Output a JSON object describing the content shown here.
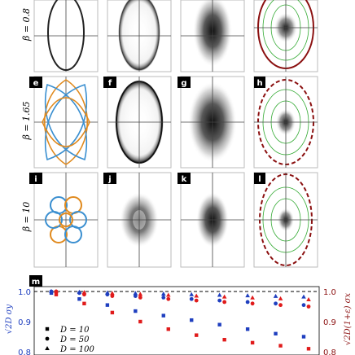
{
  "panel_letters": [
    "e",
    "f",
    "g",
    "h",
    "i",
    "j",
    "k",
    "l",
    "m"
  ],
  "row_labels": [
    "β = 0.8",
    "β = 1.65",
    "β = 10"
  ],
  "colors": {
    "blue": "#1f3fbf",
    "red": "#e01b1b",
    "dark_red": "#8b1010",
    "green": "#33aa33",
    "gray_frame": "#bbbbbb",
    "orbit_blue": "#3a8fd0",
    "orbit_orange": "#e08a1e"
  },
  "icons": [
    "ellipse-line-icon",
    "blurred-ellipse-icon",
    "gaussian-blob-icon",
    "contour-ellipse-icon",
    "lissajous-orbit-icon"
  ],
  "chart_data": {
    "type": "scatter",
    "left_axis": {
      "label": "√2D σy",
      "ticks": [
        "0.8",
        "0.9",
        "1.0"
      ],
      "ylim": [
        0.8,
        1.0
      ]
    },
    "right_axis": {
      "label": "√2D(1+ε) σx",
      "ticks": [
        "0.8",
        "0.9",
        "1.0"
      ],
      "ylim": [
        0.8,
        1.0
      ]
    },
    "reference_line": 1.0,
    "x": [
      1,
      2,
      3,
      4,
      5,
      6,
      7,
      8,
      9,
      10
    ],
    "series": [
      {
        "name": "D = 10",
        "marker": "square",
        "values_blue": [
          0.995,
          0.975,
          0.955,
          0.935,
          0.92,
          0.905,
          0.89,
          0.875,
          0.86,
          0.85
        ],
        "values_red": [
          0.99,
          0.96,
          0.93,
          0.9,
          0.875,
          0.855,
          0.84,
          0.83,
          0.82,
          0.81
        ]
      },
      {
        "name": "D = 50",
        "marker": "circle",
        "values_blue": [
          1.0,
          0.995,
          0.99,
          0.985,
          0.98,
          0.975,
          0.97,
          0.965,
          0.96,
          0.955
        ],
        "values_red": [
          1.0,
          0.99,
          0.985,
          0.98,
          0.975,
          0.97,
          0.965,
          0.96,
          0.955,
          0.95
        ]
      },
      {
        "name": "D = 100",
        "marker": "triangle",
        "values_blue": [
          1.0,
          0.998,
          0.996,
          0.994,
          0.992,
          0.99,
          0.988,
          0.986,
          0.984,
          0.982
        ],
        "values_red": [
          1.0,
          0.997,
          0.994,
          0.991,
          0.988,
          0.985,
          0.982,
          0.979,
          0.976,
          0.973
        ]
      }
    ],
    "legend": [
      "D = 10",
      "D = 50",
      "D = 100"
    ],
    "legend_position": "bottom-left"
  }
}
